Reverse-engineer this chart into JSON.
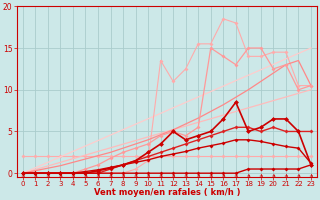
{
  "background_color": "#cce8e8",
  "grid_color": "#aacccc",
  "x_label": "Vent moyen/en rafales ( km/h )",
  "x_ticks": [
    0,
    1,
    2,
    3,
    4,
    5,
    6,
    7,
    8,
    9,
    10,
    11,
    12,
    13,
    14,
    15,
    16,
    17,
    18,
    19,
    20,
    21,
    22,
    23
  ],
  "y_ticks": [
    0,
    5,
    10,
    15,
    20
  ],
  "xlim": [
    -0.5,
    23.5
  ],
  "ylim": [
    -0.5,
    20
  ],
  "series": [
    {
      "x": [
        0,
        1,
        2,
        3,
        4,
        5,
        6,
        7,
        8,
        9,
        10,
        11,
        12,
        13,
        14,
        15,
        16,
        17,
        18,
        19,
        20,
        21,
        22,
        23
      ],
      "y": [
        2,
        2,
        2,
        2,
        2,
        2,
        2,
        2,
        2,
        2,
        2,
        2,
        2,
        2,
        2,
        2,
        2,
        2,
        2,
        2,
        2,
        2,
        2,
        2
      ],
      "color": "#ffaaaa",
      "linewidth": 0.8,
      "marker": "D",
      "markersize": 2,
      "zorder": 2
    },
    {
      "x": [
        0,
        1,
        2,
        3,
        4,
        5,
        6,
        7,
        8,
        9,
        10,
        11,
        12,
        13,
        14,
        15,
        16,
        17,
        18,
        19,
        20,
        21,
        22,
        23
      ],
      "y": [
        0,
        0.43,
        0.87,
        1.3,
        1.74,
        2.17,
        2.61,
        3.04,
        3.48,
        3.91,
        4.35,
        4.78,
        5.22,
        5.65,
        6.09,
        6.52,
        6.96,
        7.39,
        7.83,
        8.26,
        8.7,
        9.13,
        9.57,
        10.0
      ],
      "color": "#ffbbbb",
      "linewidth": 0.9,
      "marker": null,
      "markersize": 0,
      "zorder": 2
    },
    {
      "x": [
        0,
        1,
        2,
        3,
        4,
        5,
        6,
        7,
        8,
        9,
        10,
        11,
        12,
        13,
        14,
        15,
        16,
        17,
        18,
        19,
        20,
        21,
        22,
        23
      ],
      "y": [
        0,
        0.65,
        1.3,
        1.96,
        2.61,
        3.26,
        3.91,
        4.57,
        5.22,
        5.87,
        6.52,
        7.17,
        7.83,
        8.48,
        9.13,
        9.78,
        10.43,
        11.09,
        11.74,
        12.39,
        13.04,
        13.7,
        14.35,
        15.0
      ],
      "color": "#ffcccc",
      "linewidth": 0.9,
      "marker": null,
      "markersize": 0,
      "zorder": 2
    },
    {
      "x": [
        0,
        1,
        2,
        3,
        4,
        5,
        6,
        7,
        8,
        9,
        10,
        11,
        12,
        13,
        14,
        15,
        16,
        17,
        18,
        19,
        20,
        21,
        22,
        23
      ],
      "y": [
        0,
        0,
        0,
        0,
        0,
        0,
        0,
        0,
        0,
        0.5,
        1.5,
        13.5,
        11.0,
        12.5,
        15.5,
        15.5,
        18.5,
        18.0,
        14.0,
        14.0,
        14.5,
        14.5,
        10.5,
        10.5
      ],
      "color": "#ffaaaa",
      "linewidth": 0.8,
      "marker": "D",
      "markersize": 2,
      "zorder": 3
    },
    {
      "x": [
        0,
        1,
        2,
        3,
        4,
        5,
        6,
        7,
        8,
        9,
        10,
        11,
        12,
        13,
        14,
        15,
        16,
        17,
        18,
        19,
        20,
        21,
        22,
        23
      ],
      "y": [
        0,
        0.3,
        0.6,
        0.9,
        1.3,
        1.7,
        2.1,
        2.5,
        3.0,
        3.5,
        4.0,
        4.6,
        5.2,
        5.9,
        6.6,
        7.4,
        8.2,
        9.1,
        10.0,
        11.0,
        12.0,
        13.0,
        13.5,
        10.5
      ],
      "color": "#ff8888",
      "linewidth": 0.9,
      "marker": null,
      "markersize": 0,
      "zorder": 3
    },
    {
      "x": [
        0,
        1,
        2,
        3,
        4,
        5,
        6,
        7,
        8,
        9,
        10,
        11,
        12,
        13,
        14,
        15,
        16,
        17,
        18,
        19,
        20,
        21,
        22,
        23
      ],
      "y": [
        0,
        0,
        0,
        0,
        0,
        0.5,
        1.0,
        1.8,
        2.5,
        3.0,
        3.5,
        4.5,
        5.0,
        4.5,
        5.5,
        15.0,
        14.0,
        13.0,
        15.0,
        15.0,
        12.5,
        13.0,
        10.0,
        10.5
      ],
      "color": "#ff9999",
      "linewidth": 0.9,
      "marker": "D",
      "markersize": 2,
      "zorder": 3
    },
    {
      "x": [
        0,
        1,
        2,
        3,
        4,
        5,
        6,
        7,
        8,
        9,
        10,
        11,
        12,
        13,
        14,
        15,
        16,
        17,
        18,
        19,
        20,
        21,
        22,
        23
      ],
      "y": [
        0,
        0,
        0,
        0,
        0,
        0,
        0.3,
        0.6,
        1.0,
        1.5,
        2.5,
        3.5,
        5.0,
        4.0,
        4.5,
        5.0,
        6.5,
        8.5,
        5.0,
        5.5,
        6.5,
        6.5,
        5.0,
        1.0
      ],
      "color": "#cc0000",
      "linewidth": 1.2,
      "marker": "D",
      "markersize": 2.5,
      "zorder": 6
    },
    {
      "x": [
        0,
        1,
        2,
        3,
        4,
        5,
        6,
        7,
        8,
        9,
        10,
        11,
        12,
        13,
        14,
        15,
        16,
        17,
        18,
        19,
        20,
        21,
        22,
        23
      ],
      "y": [
        0,
        0,
        0,
        0,
        0,
        0,
        0,
        0.5,
        1.0,
        1.5,
        2.0,
        2.5,
        3.0,
        3.5,
        4.0,
        4.5,
        5.0,
        5.5,
        5.5,
        5.0,
        5.5,
        5.0,
        5.0,
        5.0
      ],
      "color": "#dd2222",
      "linewidth": 1.0,
      "marker": "D",
      "markersize": 2,
      "zorder": 5
    },
    {
      "x": [
        0,
        1,
        2,
        3,
        4,
        5,
        6,
        7,
        8,
        9,
        10,
        11,
        12,
        13,
        14,
        15,
        16,
        17,
        18,
        19,
        20,
        21,
        22,
        23
      ],
      "y": [
        0,
        0,
        0,
        0,
        0,
        0,
        0,
        0,
        0,
        0,
        0,
        0,
        0,
        0,
        0,
        0,
        0,
        0,
        0.5,
        0.5,
        0.5,
        0.5,
        0.5,
        1.0
      ],
      "color": "#cc0000",
      "linewidth": 1.0,
      "marker": "D",
      "markersize": 2,
      "zorder": 7
    },
    {
      "x": [
        0,
        1,
        2,
        3,
        4,
        5,
        6,
        7,
        8,
        9,
        10,
        11,
        12,
        13,
        14,
        15,
        16,
        17,
        18,
        19,
        20,
        21,
        22,
        23
      ],
      "y": [
        0,
        0,
        0,
        0,
        0,
        0.2,
        0.4,
        0.7,
        1.0,
        1.3,
        1.6,
        2.0,
        2.3,
        2.6,
        3.0,
        3.3,
        3.6,
        4.0,
        4.0,
        3.8,
        3.5,
        3.2,
        3.0,
        1.2
      ],
      "color": "#cc0000",
      "linewidth": 1.0,
      "marker": "D",
      "markersize": 2,
      "zorder": 6
    }
  ]
}
